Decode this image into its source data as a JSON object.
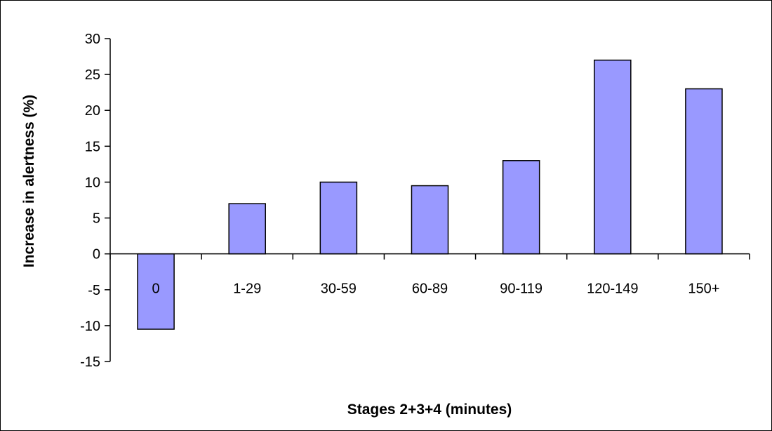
{
  "chart_data": {
    "type": "bar",
    "title": "",
    "xlabel": "Stages 2+3+4 (minutes)",
    "ylabel": "Increase in alertness (%)",
    "categories": [
      "0",
      "1-29",
      "30-59",
      "60-89",
      "90-119",
      "120-149",
      "150+"
    ],
    "values": [
      -10.5,
      7,
      10,
      9.5,
      13,
      27,
      23
    ],
    "ylim": [
      -15,
      30
    ],
    "yticks": [
      "-15",
      "-10",
      "-5",
      "0",
      "5",
      "10",
      "15",
      "20",
      "25",
      "30"
    ],
    "grid": false,
    "legend": "none",
    "bar_color": "#9999ff",
    "bar_edge_color": "#000000"
  }
}
